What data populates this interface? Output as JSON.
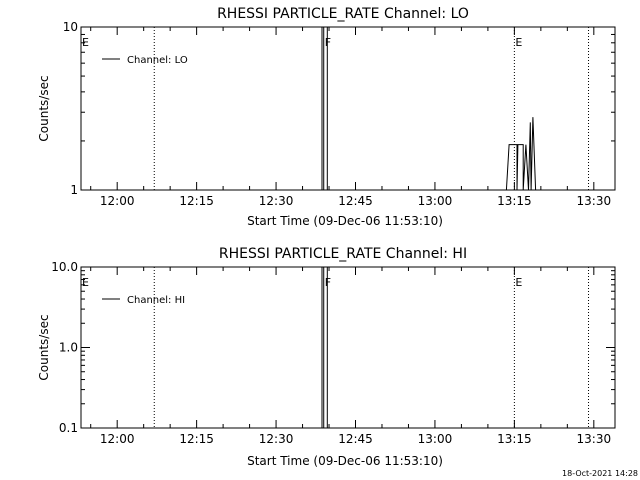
{
  "chart_data": [
    {
      "type": "line",
      "title": "RHESSI PARTICLE_RATE Channel: LO",
      "xlabel": "Start Time (09-Dec-06 11:53:10)",
      "ylabel": "Counts/sec",
      "yscale": "log",
      "xlim": [
        "11:53:10",
        "13:34:00"
      ],
      "ylim": [
        1,
        10
      ],
      "x_ticks": [
        "12:00",
        "12:15",
        "12:30",
        "12:45",
        "13:00",
        "13:15",
        "13:30"
      ],
      "y_ticks": [
        "1",
        "10"
      ],
      "grid": false,
      "legend": {
        "position": "top-left",
        "entries": [
          "Channel: LO"
        ]
      },
      "flag_lines": [
        {
          "time": "11:53:10",
          "label": "E",
          "style": "none"
        },
        {
          "time": "12:07:00",
          "label": "",
          "style": "dotted"
        },
        {
          "time": "12:39:00",
          "label": "F",
          "style": "solid"
        },
        {
          "time": "13:15:00",
          "label": "E",
          "style": "dotted"
        },
        {
          "time": "13:29:00",
          "label": "",
          "style": "dotted"
        }
      ],
      "series": [
        {
          "name": "Channel: LO",
          "x": [
            "12:38:40",
            "12:38:40",
            "12:39:40",
            "12:39:40",
            "13:13:30",
            "13:14:00",
            "13:14:00",
            "13:15:00",
            "13:15:30",
            "13:15:30",
            "13:15:40",
            "13:16:10",
            "13:16:40",
            "13:16:40",
            "13:17:10",
            "13:17:40",
            "13:18:00",
            "13:18:10",
            "13:18:30",
            "13:19:00"
          ],
          "y": [
            1,
            10,
            10,
            1,
            1,
            1.9,
            1.9,
            1.9,
            1.9,
            1,
            1.9,
            1.9,
            1.9,
            1,
            1.9,
            1,
            2.6,
            1,
            2.8,
            1
          ]
        }
      ]
    },
    {
      "type": "line",
      "title": "RHESSI PARTICLE_RATE Channel: HI",
      "xlabel": "Start Time (09-Dec-06 11:53:10)",
      "ylabel": "Counts/sec",
      "yscale": "log",
      "xlim": [
        "11:53:10",
        "13:34:00"
      ],
      "ylim": [
        0.1,
        10
      ],
      "x_ticks": [
        "12:00",
        "12:15",
        "12:30",
        "12:45",
        "13:00",
        "13:15",
        "13:30"
      ],
      "y_ticks": [
        "0.1",
        "1.0",
        "10.0"
      ],
      "grid": false,
      "legend": {
        "position": "top-left",
        "entries": [
          "Channel: HI"
        ]
      },
      "flag_lines": [
        {
          "time": "11:53:10",
          "label": "E",
          "style": "none"
        },
        {
          "time": "12:07:00",
          "label": "",
          "style": "dotted"
        },
        {
          "time": "12:39:00",
          "label": "F",
          "style": "solid"
        },
        {
          "time": "13:15:00",
          "label": "E",
          "style": "dotted"
        },
        {
          "time": "13:29:00",
          "label": "",
          "style": "dotted"
        }
      ],
      "series": [
        {
          "name": "Channel: HI",
          "x": [
            "12:38:40",
            "12:38:40",
            "12:39:40",
            "12:39:40"
          ],
          "y": [
            0.1,
            10,
            10,
            0.1
          ]
        }
      ]
    }
  ],
  "timestamp": "18-Oct-2021 14:28"
}
